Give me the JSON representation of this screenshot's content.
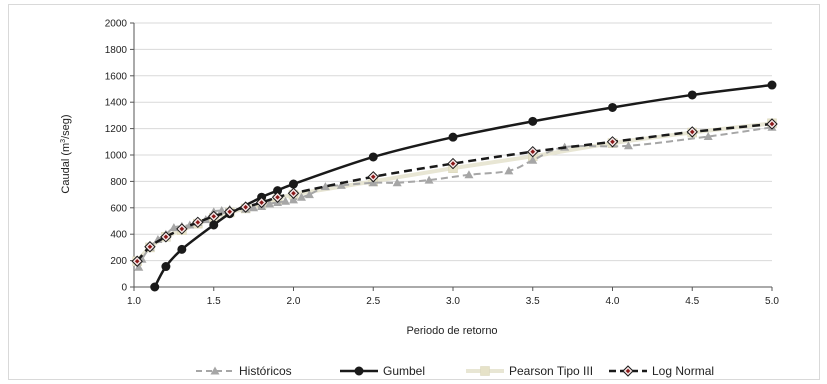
{
  "chart_data": {
    "type": "line",
    "title": "",
    "xlabel": "Periodo de retorno",
    "ylabel": "Caudal (m³/seg)",
    "ylabel_parts": {
      "prefix": "Caudal (m",
      "superscript": "3",
      "suffix": "/seg)"
    },
    "xlim": [
      1.0,
      5.0
    ],
    "ylim": [
      0,
      2000
    ],
    "xticks": [
      1.0,
      1.5,
      2.0,
      2.5,
      3.0,
      3.5,
      4.0,
      4.5,
      5.0
    ],
    "xtick_labels": [
      "1.0",
      "1.5",
      "2.0",
      "2.5",
      "3.0",
      "3.5",
      "4.0",
      "4.5",
      "5.0"
    ],
    "yticks": [
      0,
      200,
      400,
      600,
      800,
      1000,
      1200,
      1400,
      1600,
      1800,
      2000
    ],
    "ytick_labels": [
      "0",
      "200",
      "400",
      "600",
      "800",
      "1000",
      "1200",
      "1400",
      "1600",
      "1800",
      "2000"
    ],
    "grid": {
      "horizontal": true,
      "vertical": false
    },
    "legend_position": "bottom",
    "series": [
      {
        "name": "Históricos",
        "color": "#a6a6a6",
        "line_style": "dashed",
        "marker": "triangle",
        "x": [
          1.03,
          1.05,
          1.1,
          1.15,
          1.2,
          1.25,
          1.3,
          1.35,
          1.4,
          1.45,
          1.5,
          1.55,
          1.6,
          1.7,
          1.75,
          1.8,
          1.85,
          1.9,
          1.95,
          2.0,
          2.05,
          2.1,
          2.2,
          2.3,
          2.5,
          2.65,
          2.85,
          3.1,
          3.35,
          3.5,
          3.7,
          4.1,
          4.6,
          5.0
        ],
        "y": [
          150,
          210,
          300,
          360,
          400,
          450,
          460,
          470,
          490,
          510,
          570,
          580,
          590,
          590,
          600,
          610,
          630,
          640,
          650,
          660,
          680,
          700,
          760,
          770,
          790,
          790,
          810,
          850,
          880,
          960,
          1060,
          1070,
          1140,
          1210
        ]
      },
      {
        "name": "Gumbel",
        "color": "#1a1a1a",
        "line_style": "solid",
        "marker": "circle",
        "x": [
          1.13,
          1.2,
          1.3,
          1.5,
          1.6,
          1.8,
          1.9,
          2.0,
          2.5,
          3.0,
          3.5,
          4.0,
          4.5,
          5.0
        ],
        "y": [
          0,
          155,
          285,
          470,
          555,
          680,
          730,
          780,
          985,
          1135,
          1255,
          1360,
          1455,
          1530
        ]
      },
      {
        "name": "Pearson Tipo III",
        "color": "#e8e6d4",
        "line_style": "solid",
        "marker": "square",
        "x": [
          1.02,
          1.1,
          1.2,
          1.3,
          1.4,
          1.5,
          1.6,
          1.7,
          1.8,
          1.9,
          2.0,
          2.5,
          3.0,
          3.5,
          4.0,
          4.5,
          5.0
        ],
        "y": [
          195,
          300,
          380,
          430,
          480,
          525,
          565,
          595,
          630,
          665,
          700,
          800,
          900,
          990,
          1090,
          1170,
          1240
        ]
      },
      {
        "name": "Log Normal",
        "color": "#1a1a1a",
        "marker_fill": "#8b1a1a",
        "line_style": "dashed",
        "marker": "diamond",
        "x": [
          1.02,
          1.1,
          1.2,
          1.3,
          1.4,
          1.5,
          1.6,
          1.7,
          1.8,
          1.9,
          2.0,
          2.5,
          3.0,
          3.5,
          4.0,
          4.5,
          5.0
        ],
        "y": [
          195,
          305,
          380,
          440,
          490,
          535,
          570,
          605,
          640,
          680,
          710,
          835,
          935,
          1025,
          1100,
          1175,
          1235
        ]
      }
    ]
  }
}
